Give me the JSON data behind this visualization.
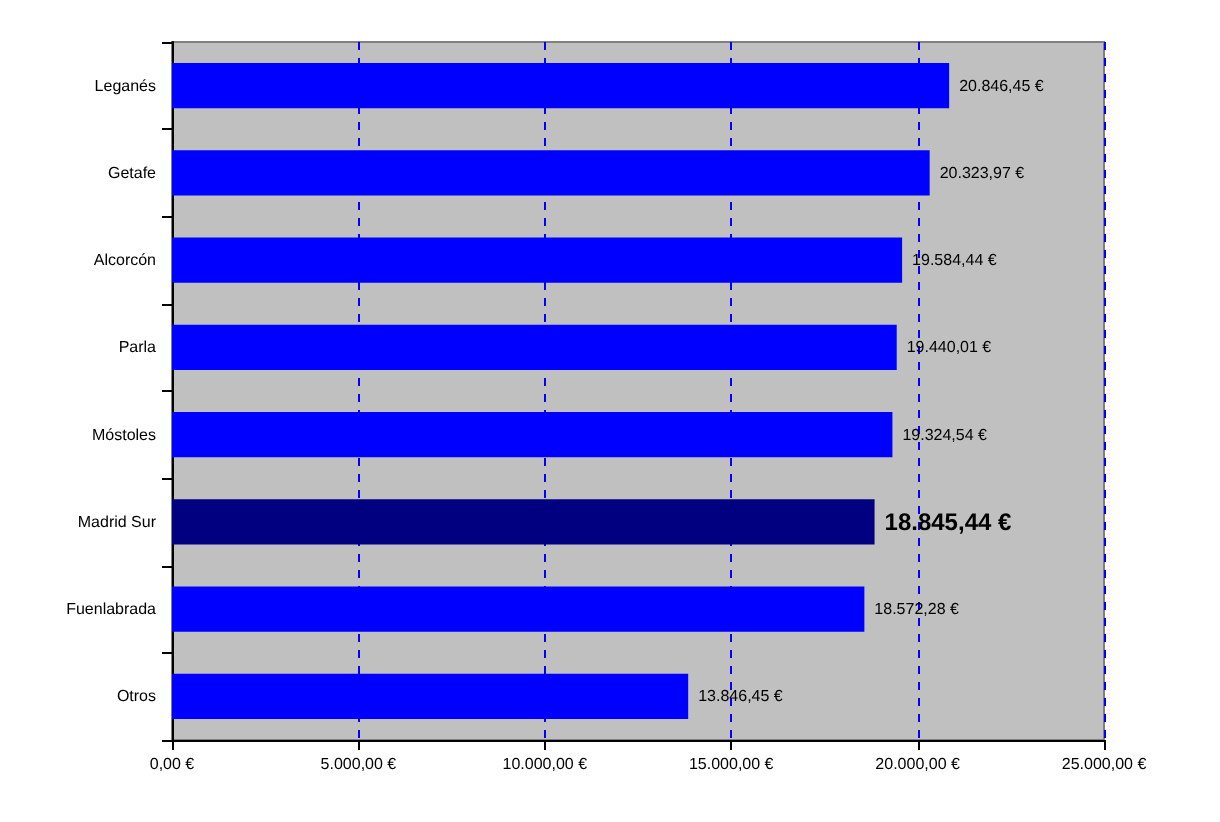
{
  "chart_data": {
    "type": "bar",
    "orientation": "horizontal",
    "categories": [
      "Leganés",
      "Getafe",
      "Alcorcón",
      "Parla",
      "Móstoles",
      "Madrid Sur",
      "Fuenlabrada",
      "Otros"
    ],
    "values": [
      20846.45,
      20323.97,
      19584.44,
      19440.01,
      19324.54,
      18845.44,
      18572.28,
      13846.45
    ],
    "colors": [
      "#0000ff",
      "#0000ff",
      "#0000ff",
      "#0000ff",
      "#0000ff",
      "#000080",
      "#0000ff",
      "#0000ff"
    ],
    "value_labels": [
      "20.846,45 €",
      "20.323,97 €",
      "19.584,44 €",
      "19.440,01 €",
      "19.324,54 €",
      "18.845,44 €",
      "18.572,28 €",
      "13.846,45 €"
    ],
    "xlim": [
      0,
      25000
    ],
    "xticks": [
      {
        "value": 0,
        "label": "0,00 €"
      },
      {
        "value": 5000,
        "label": "5.000,00 €"
      },
      {
        "value": 10000,
        "label": "10.000,00 €"
      },
      {
        "value": 15000,
        "label": "15.000,00 €"
      },
      {
        "value": 20000,
        "label": "20.000,00 €"
      },
      {
        "value": 25000,
        "label": "25.000,00 €"
      }
    ],
    "grid": "x"
  }
}
